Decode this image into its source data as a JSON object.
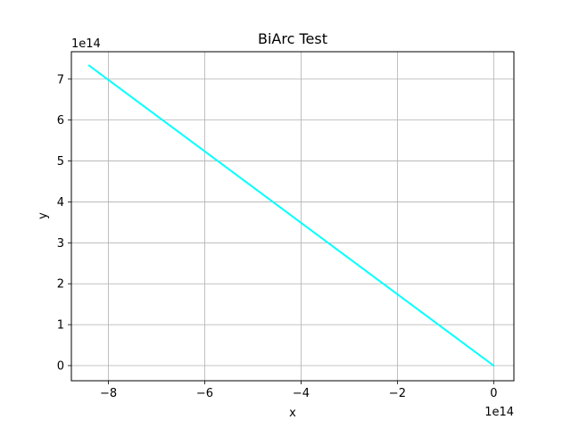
{
  "chart_data": {
    "type": "line",
    "title": "BiArc Test",
    "xlabel": "x",
    "ylabel": "y",
    "x_offset_text": "1e14",
    "y_offset_text": "1e14",
    "xlim": [
      -8.77,
      0.42
    ],
    "ylim": [
      -0.37,
      7.67
    ],
    "xticks": [
      -8,
      -6,
      -4,
      -2,
      0
    ],
    "xtick_labels": [
      "−8",
      "−6",
      "−4",
      "−2",
      "0"
    ],
    "yticks": [
      0,
      1,
      2,
      3,
      4,
      5,
      6,
      7
    ],
    "ytick_labels": [
      "0",
      "1",
      "2",
      "3",
      "4",
      "5",
      "6",
      "7"
    ],
    "grid": true,
    "series": [
      {
        "color": "#00ffff",
        "x": [
          -8.4,
          0.0
        ],
        "y": [
          7.33,
          0.0
        ]
      }
    ]
  }
}
